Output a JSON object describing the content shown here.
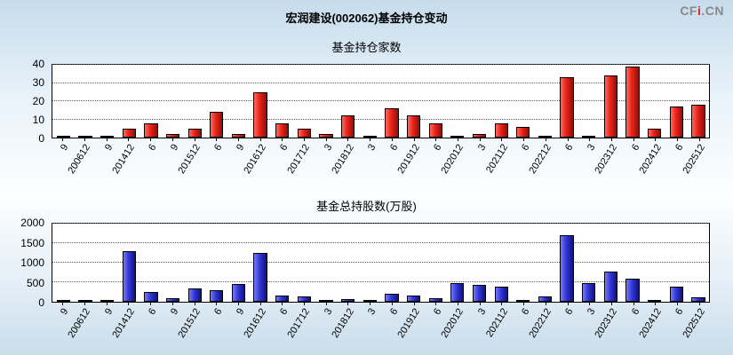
{
  "header": {
    "title": "宏润建设(002062)基金持仓变动",
    "logo": {
      "part1": "CF",
      "part2": "i",
      "part3": ".CN"
    }
  },
  "chart_data": [
    {
      "type": "bar",
      "title": "基金持仓家数",
      "xlabel": "",
      "ylabel": "",
      "ylim": [
        0,
        40
      ],
      "yticks": [
        0,
        10,
        20,
        30,
        40
      ],
      "grid": "dotted-horizontal",
      "legend": "none",
      "bar_color": "#e8231a",
      "bar_highlight": "#ff6a5a",
      "bar_shadow": "#8f0e08",
      "categories": [
        "9",
        "200612",
        "9",
        "201412",
        "6",
        "9",
        "201512",
        "6",
        "9",
        "201612",
        "6",
        "201712",
        "3",
        "201812",
        "3",
        "6",
        "201912",
        "6",
        "202012",
        "3",
        "202112",
        "6",
        "202212",
        "6",
        "3",
        "202312",
        "6",
        "202412",
        "6",
        "202512"
      ],
      "values": [
        1,
        1,
        1,
        5,
        8,
        2,
        5,
        14,
        2,
        25,
        8,
        5,
        2,
        12,
        1,
        16,
        12,
        8,
        1,
        2,
        8,
        6,
        1,
        33,
        1,
        34,
        39,
        5,
        17,
        18
      ]
    },
    {
      "type": "bar",
      "title": "基金总持股数(万股)",
      "xlabel": "",
      "ylabel": "",
      "ylim": [
        0,
        2000
      ],
      "yticks": [
        0,
        500,
        1000,
        1500,
        2000
      ],
      "grid": "dotted-horizontal",
      "legend": "none",
      "bar_color": "#3236d8",
      "bar_highlight": "#7a7af0",
      "bar_shadow": "#11127a",
      "categories": [
        "9",
        "200612",
        "9",
        "201412",
        "6",
        "9",
        "201512",
        "6",
        "9",
        "201612",
        "6",
        "201712",
        "3",
        "201812",
        "3",
        "6",
        "201912",
        "6",
        "202012",
        "3",
        "202112",
        "6",
        "202212",
        "6",
        "3",
        "202312",
        "6",
        "202412",
        "6",
        "202512"
      ],
      "values": [
        40,
        20,
        30,
        1300,
        250,
        100,
        350,
        300,
        460,
        1250,
        150,
        140,
        30,
        60,
        30,
        200,
        150,
        90,
        480,
        440,
        390,
        30,
        140,
        1700,
        480,
        780,
        600,
        50,
        380,
        120
      ]
    }
  ]
}
